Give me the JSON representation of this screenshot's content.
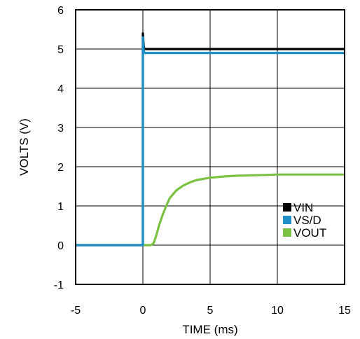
{
  "chart_data": {
    "type": "line",
    "title": "",
    "xlabel": "TIME (ms)",
    "ylabel": "VOLTS (V)",
    "xlim": [
      -5,
      15
    ],
    "ylim": [
      -1,
      6
    ],
    "xticks": [
      -5,
      0,
      5,
      10,
      15
    ],
    "yticks": [
      -1,
      0,
      1,
      2,
      3,
      4,
      5,
      6
    ],
    "xtick_labels": [
      "-5",
      "0",
      "5",
      "10",
      "15"
    ],
    "ytick_labels": [
      "-1",
      "0",
      "1",
      "2",
      "3",
      "4",
      "5",
      "6"
    ],
    "grid": true,
    "legend": "inside-right",
    "series": [
      {
        "name": "VIN",
        "color": "#000000",
        "x": [
          -5,
          0,
          0,
          0.05,
          0.1,
          15
        ],
        "y": [
          0,
          0,
          5.4,
          5.1,
          5.0,
          5.0
        ]
      },
      {
        "name": "VS/D",
        "color": "#1f8fc8",
        "x": [
          -5,
          0,
          0,
          0.05,
          0.1,
          15
        ],
        "y": [
          0,
          0,
          5.3,
          5.0,
          4.9,
          4.9
        ]
      },
      {
        "name": "VOUT",
        "color": "#7cc242",
        "x": [
          0,
          0.6,
          0.8,
          1.0,
          1.2,
          1.5,
          1.8,
          2.0,
          2.5,
          3.0,
          3.5,
          4.0,
          5.0,
          6.0,
          7.0,
          8.0,
          9.0,
          10.0,
          11.0,
          12.0,
          13.0,
          14.0,
          15.0
        ],
        "y": [
          0,
          0,
          0.05,
          0.25,
          0.5,
          0.8,
          1.05,
          1.2,
          1.4,
          1.52,
          1.6,
          1.66,
          1.72,
          1.75,
          1.77,
          1.78,
          1.79,
          1.8,
          1.8,
          1.8,
          1.8,
          1.8,
          1.8
        ]
      }
    ]
  }
}
